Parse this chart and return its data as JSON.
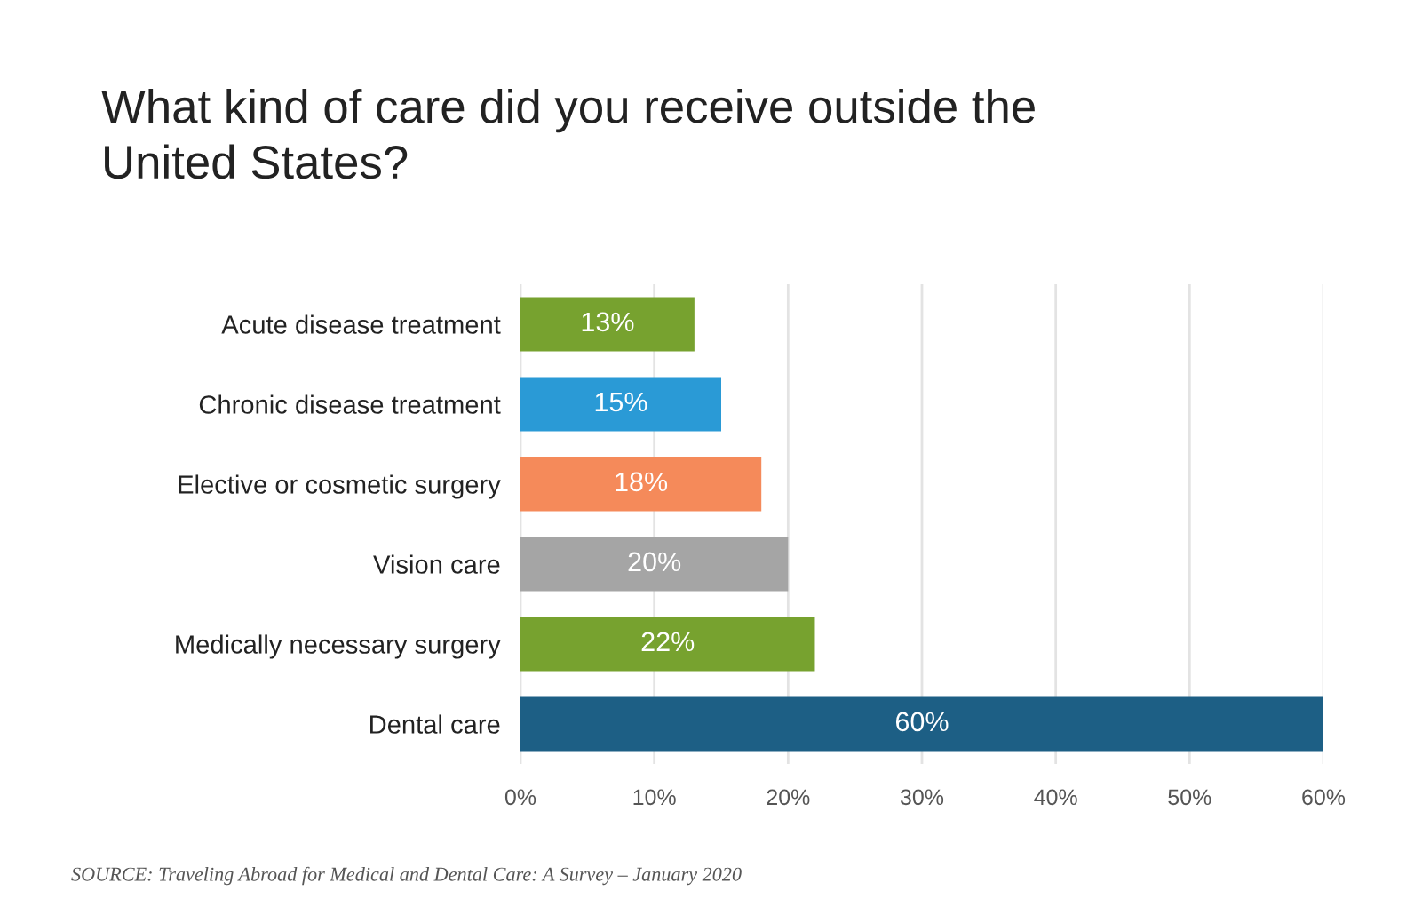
{
  "chart_data": {
    "type": "bar",
    "orientation": "horizontal",
    "title": "What kind of care did you receive outside the\nUnited States?",
    "categories": [
      "Acute disease treatment",
      "Chronic disease treatment",
      "Elective or cosmetic surgery",
      "Vision care",
      "Medically necessary surgery",
      "Dental care"
    ],
    "values": [
      13,
      15,
      18,
      20,
      22,
      60
    ],
    "colors": [
      "#77a22f",
      "#2a9ad6",
      "#f58a5a",
      "#a5a5a5",
      "#77a22f",
      "#1d5f85"
    ],
    "value_labels": [
      "13%",
      "15%",
      "18%",
      "20%",
      "22%",
      "60%"
    ],
    "xlim": [
      0,
      60
    ],
    "xticks": [
      {
        "value": 0,
        "label": "0%"
      },
      {
        "value": 10,
        "label": "10%"
      },
      {
        "value": 20,
        "label": "20%"
      },
      {
        "value": 30,
        "label": "30%"
      },
      {
        "value": 40,
        "label": "40%"
      },
      {
        "value": 50,
        "label": "50%"
      },
      {
        "value": 60,
        "label": "60%"
      }
    ],
    "grid": "x",
    "legend": false,
    "annotations": [
      "SOURCE: Traveling Abroad for Medical and Dental Care: A Survey – January 2020"
    ]
  }
}
